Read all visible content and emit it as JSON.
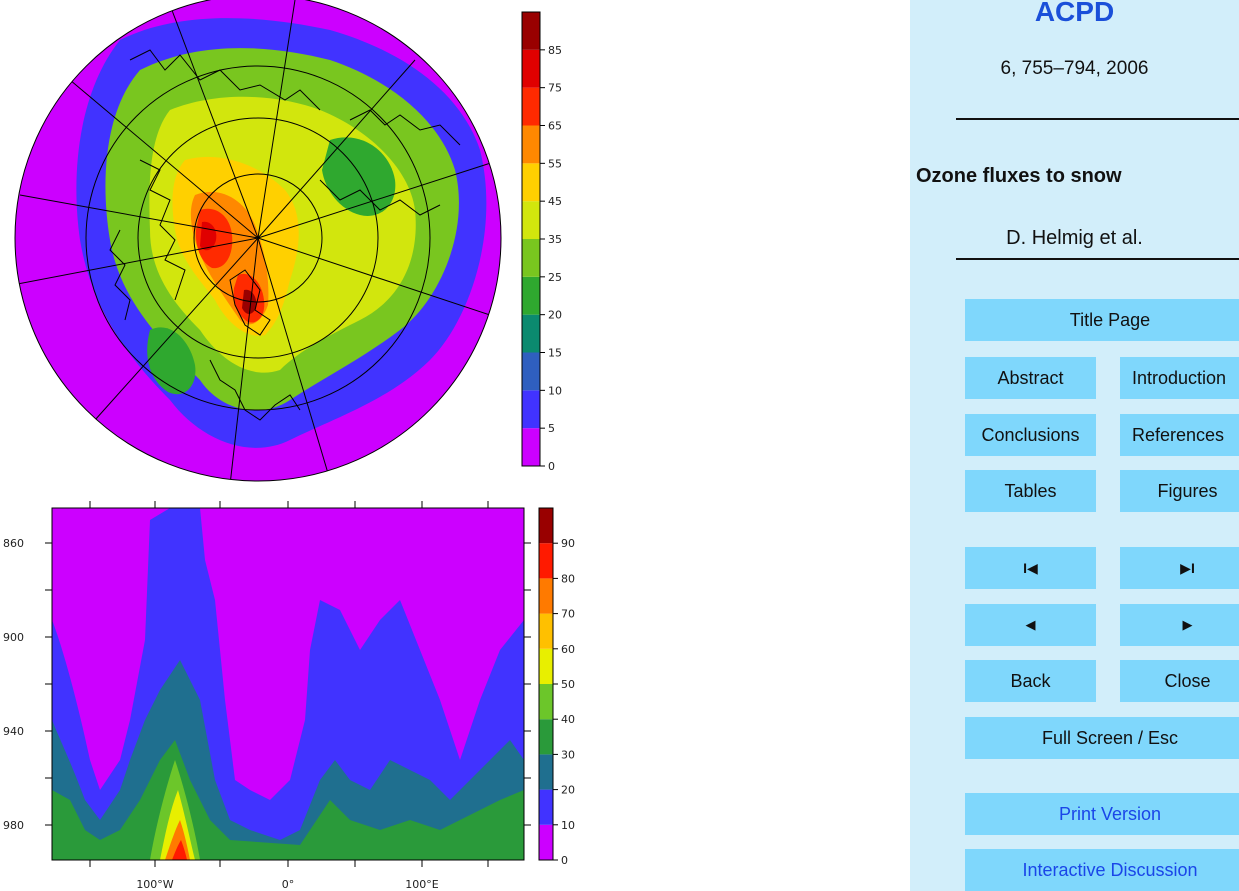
{
  "chart_data": [
    {
      "type": "map",
      "title": "",
      "colorbar": {
        "ticks": [
          "0",
          "5",
          "10",
          "15",
          "20",
          "25",
          "35",
          "45",
          "55",
          "65",
          "75",
          "85"
        ],
        "colors": [
          "#cc00ff",
          "#4133ff",
          "#2f5fbf",
          "#0b8a6f",
          "#2fa82f",
          "#79c61f",
          "#d2e60d",
          "#ffd000",
          "#ff8800",
          "#ff2a00",
          "#e00000",
          "#990000"
        ]
      }
    },
    {
      "type": "heatmap",
      "title": "",
      "xlabel": "",
      "ylabel": "",
      "x_tick_labels": [
        "100°W",
        "0°",
        "100°E"
      ],
      "y_tick_labels": [
        "860",
        "900",
        "940",
        "980"
      ],
      "colorbar": {
        "ticks": [
          "0",
          "10",
          "20",
          "30",
          "40",
          "50",
          "60",
          "70",
          "80",
          "90"
        ],
        "colors": [
          "#cc00ff",
          "#4133ff",
          "#1f6f8f",
          "#2a9a3a",
          "#6cc62a",
          "#e8ef00",
          "#ffc000",
          "#ff7a00",
          "#ff1a00",
          "#990000"
        ]
      }
    }
  ],
  "panel": {
    "journal": "ACPD",
    "volume": "6, 755–794, 2006",
    "title": "Ozone fluxes to snow",
    "authors": "D. Helmig et al."
  },
  "buttons": {
    "title_page": "Title Page",
    "abstract": "Abstract",
    "introduction": "Introduction",
    "conclusions": "Conclusions",
    "references": "References",
    "tables": "Tables",
    "figures": "Figures",
    "first": "◂◂",
    "last": "▸▸",
    "first_glyph": "I◀",
    "last_glyph": "▶I",
    "prev": "◀",
    "next": "▶",
    "back": "Back",
    "close": "Close",
    "fullscreen": "Full Screen / Esc",
    "print": "Print Version",
    "discussion": "Interactive Discussion"
  }
}
